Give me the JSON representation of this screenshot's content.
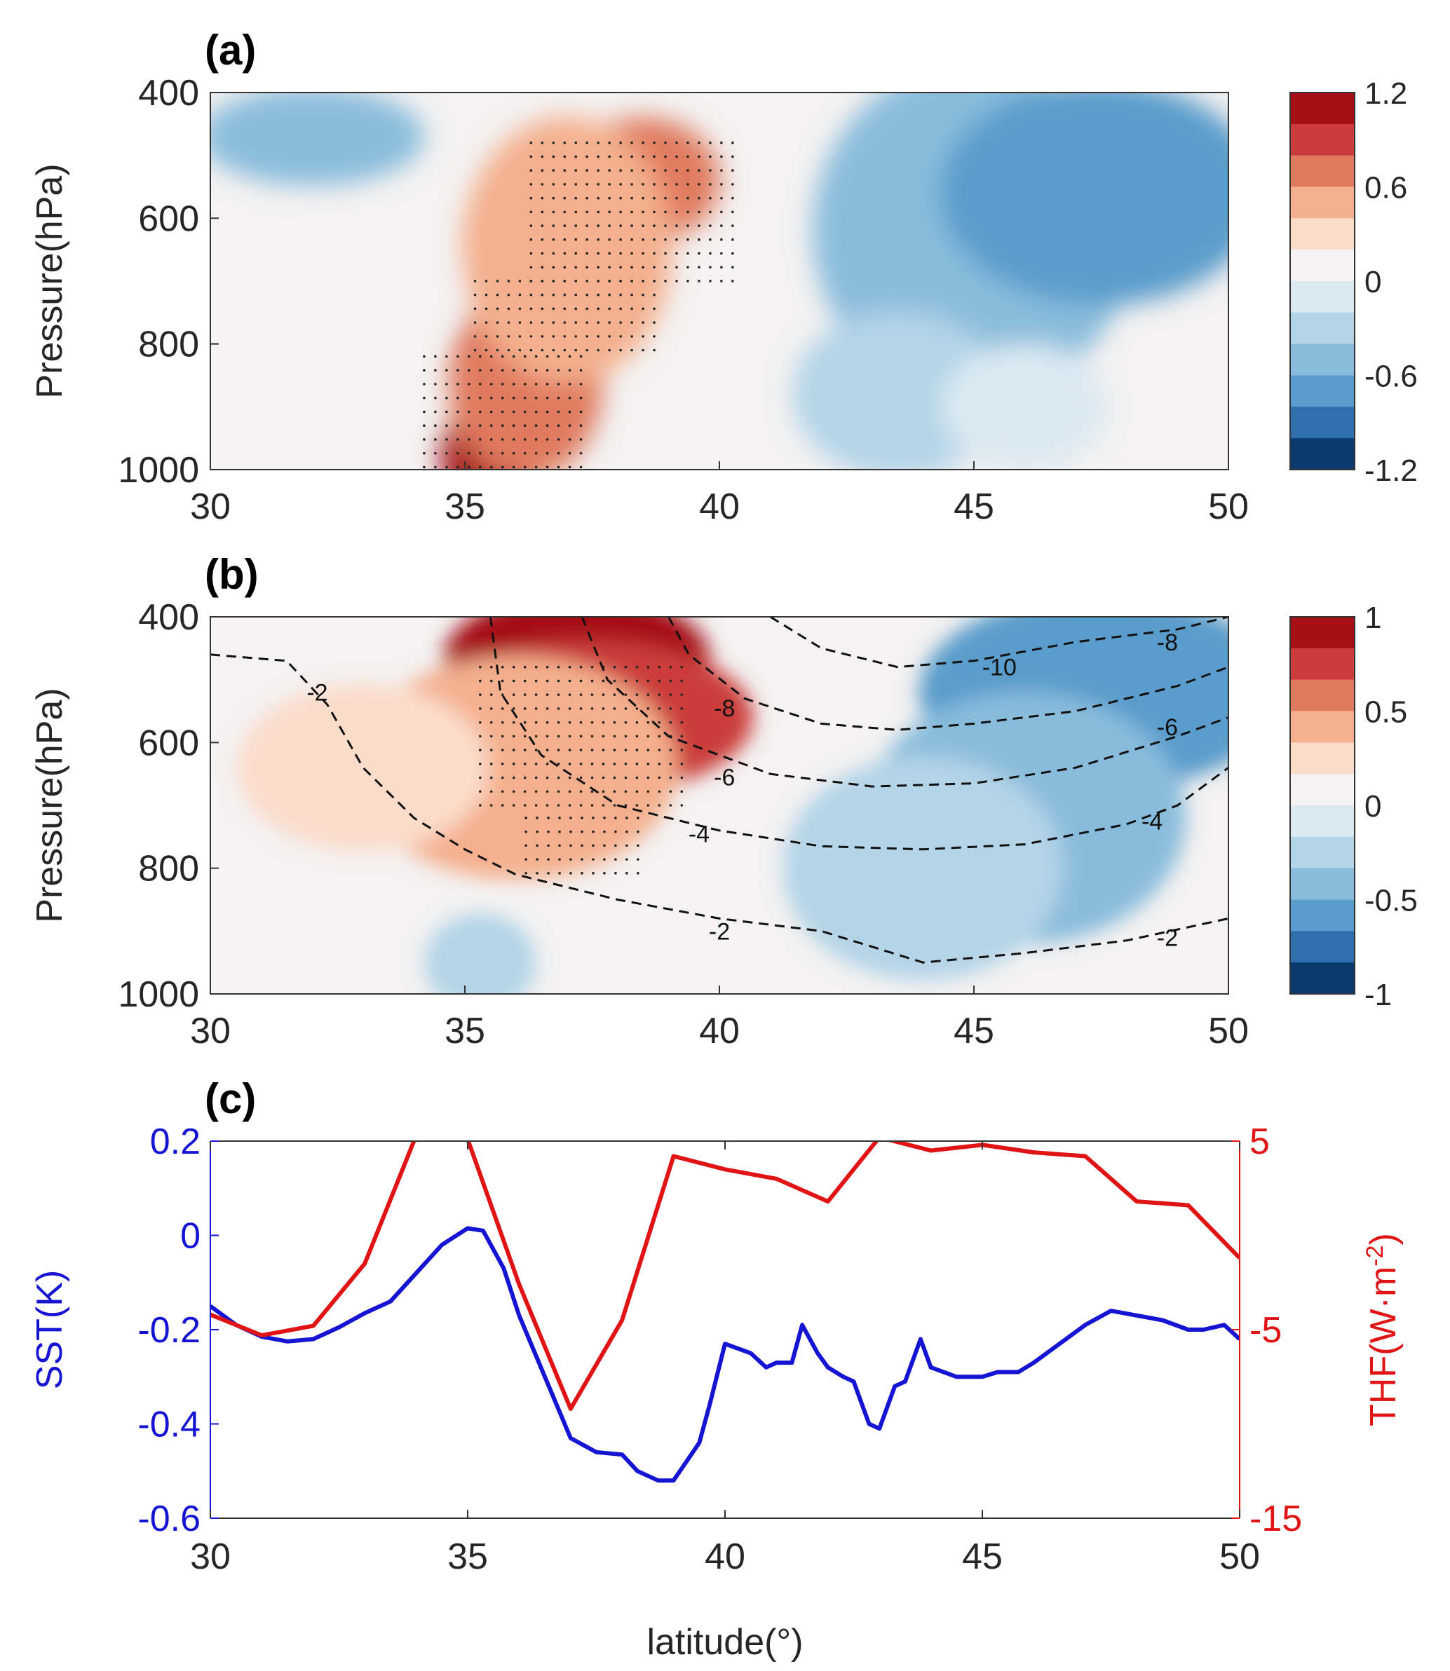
{
  "figure": {
    "panel_labels": [
      "(a)",
      "(b)",
      "(c)"
    ]
  },
  "chart_data": [
    {
      "panel": "(a)",
      "type": "heatmap",
      "ylabel": "Pressure(hPa)",
      "xlabel": "",
      "xlim": [
        30,
        50
      ],
      "ylim": [
        1000,
        400
      ],
      "xticks": [
        30,
        35,
        40,
        45,
        50
      ],
      "yticks": [
        400,
        600,
        800,
        1000
      ],
      "colorbar": {
        "min": -1.2,
        "max": 1.2,
        "ticks": [
          "1.2",
          "0.6",
          "0",
          "-0.6",
          "-1.2"
        ]
      },
      "annotations": [
        "stippling marks statistically significant region (approx. 34–40°N)"
      ],
      "anomaly_regions": [
        {
          "center": [
            35.5,
            980
          ],
          "value": 1.2
        },
        {
          "center": [
            36.2,
            860
          ],
          "value": 0.8
        },
        {
          "center": [
            38.5,
            540
          ],
          "value": 0.8
        },
        {
          "center": [
            37.0,
            650
          ],
          "value": 0.5
        },
        {
          "center": [
            33.0,
            720
          ],
          "value": 0.2
        },
        {
          "center": [
            45.0,
            620
          ],
          "value": -0.6
        },
        {
          "center": [
            47.5,
            560
          ],
          "value": -0.7
        },
        {
          "center": [
            32.0,
            470
          ],
          "value": -0.5
        },
        {
          "center": [
            43.5,
            880
          ],
          "value": -0.35
        },
        {
          "center": [
            46.0,
            900
          ],
          "value": 0.0
        }
      ]
    },
    {
      "panel": "(b)",
      "type": "heatmap",
      "ylabel": "Pressure(hPa)",
      "xlabel": "",
      "xlim": [
        30,
        50
      ],
      "ylim": [
        1000,
        400
      ],
      "xticks": [
        30,
        35,
        40,
        45,
        50
      ],
      "yticks": [
        400,
        600,
        800,
        1000
      ],
      "colorbar": {
        "min": -1,
        "max": 1,
        "ticks": [
          "1",
          "0.5",
          "0",
          "-0.5",
          "-1"
        ]
      },
      "anomaly_regions": [
        {
          "center": [
            37.2,
            470
          ],
          "value": 1.0
        },
        {
          "center": [
            37.5,
            560
          ],
          "value": 0.75
        },
        {
          "center": [
            36.0,
            640
          ],
          "value": 0.45
        },
        {
          "center": [
            33.0,
            640
          ],
          "value": 0.35
        },
        {
          "center": [
            47.5,
            520
          ],
          "value": -0.6
        },
        {
          "center": [
            46.0,
            720
          ],
          "value": -0.45
        },
        {
          "center": [
            44.0,
            800
          ],
          "value": -0.2
        },
        {
          "center": [
            35.3,
            950
          ],
          "value": -0.25
        }
      ],
      "contours": [
        {
          "label": "-2",
          "points": [
            [
              30,
              460
            ],
            [
              31.5,
              470
            ],
            [
              32.3,
              540
            ],
            [
              33,
              640
            ],
            [
              34,
              720
            ],
            [
              35,
              770
            ],
            [
              36,
              810
            ],
            [
              38,
              850
            ],
            [
              40,
              880
            ],
            [
              42,
              900
            ],
            [
              44,
              950
            ],
            [
              46,
              935
            ],
            [
              48,
              915
            ],
            [
              50,
              880
            ]
          ]
        },
        {
          "label": "-4",
          "points": [
            [
              35.5,
              400
            ],
            [
              35.7,
              520
            ],
            [
              36.5,
              620
            ],
            [
              38,
              700
            ],
            [
              40,
              740
            ],
            [
              42,
              765
            ],
            [
              44,
              770
            ],
            [
              46,
              762
            ],
            [
              48,
              730
            ],
            [
              49,
              700
            ],
            [
              50,
              640
            ]
          ]
        },
        {
          "label": "-6",
          "points": [
            [
              37.3,
              400
            ],
            [
              37.8,
              500
            ],
            [
              39,
              590
            ],
            [
              41,
              650
            ],
            [
              43,
              670
            ],
            [
              45,
              665
            ],
            [
              47,
              640
            ],
            [
              49,
              590
            ],
            [
              50,
              560
            ]
          ]
        },
        {
          "label": "-8",
          "points": [
            [
              39,
              400
            ],
            [
              39.4,
              460
            ],
            [
              40.5,
              530
            ],
            [
              42,
              570
            ],
            [
              43.5,
              580
            ],
            [
              45,
              570
            ],
            [
              47,
              550
            ],
            [
              49,
              510
            ],
            [
              50,
              480
            ]
          ]
        },
        {
          "label": "-10",
          "points": [
            [
              41,
              400
            ],
            [
              42,
              450
            ],
            [
              43.5,
              480
            ],
            [
              45,
              470
            ],
            [
              47,
              440
            ],
            [
              49,
              420
            ],
            [
              50,
              400
            ]
          ]
        }
      ],
      "contour_labels": [
        {
          "text": "-2",
          "at": [
            32.1,
            520
          ]
        },
        {
          "text": "-2",
          "at": [
            40,
            900
          ]
        },
        {
          "text": "-2",
          "at": [
            48.8,
            910
          ]
        },
        {
          "text": "-4",
          "at": [
            39.6,
            745
          ]
        },
        {
          "text": "-4",
          "at": [
            48.5,
            725
          ]
        },
        {
          "text": "-6",
          "at": [
            40.1,
            655
          ]
        },
        {
          "text": "-6",
          "at": [
            48.8,
            575
          ]
        },
        {
          "text": "-8",
          "at": [
            40.1,
            545
          ]
        },
        {
          "text": "-8",
          "at": [
            48.8,
            440
          ]
        },
        {
          "text": "-10",
          "at": [
            45.5,
            480
          ]
        }
      ]
    },
    {
      "panel": "(c)",
      "type": "line",
      "xlabel": "latitude(°)",
      "ylabel": "SST(K)",
      "ylabel_right": "THF(W·m-2)",
      "xlim": [
        30,
        50
      ],
      "ylim": [
        -0.6,
        0.2
      ],
      "ylim_right": [
        -15,
        5
      ],
      "xticks": [
        30,
        35,
        40,
        45,
        50
      ],
      "yticks": [
        "0.2",
        "0",
        "-0.2",
        "-0.4",
        "-0.6"
      ],
      "yticks_right": [
        "5",
        "-5",
        "-15"
      ],
      "colors": {
        "sst": "#1414d2",
        "thf": "#e01414"
      },
      "series": [
        {
          "name": "SST",
          "axis": "left",
          "x": [
            30,
            30.5,
            31,
            31.5,
            32,
            32.5,
            33,
            33.5,
            34,
            34.5,
            35,
            35.3,
            35.7,
            36,
            36.5,
            37,
            37.5,
            38,
            38.3,
            38.7,
            39,
            39.5,
            39.7,
            40,
            40.5,
            40.8,
            41,
            41.3,
            41.5,
            41.8,
            42,
            42.3,
            42.5,
            42.8,
            43,
            43.3,
            43.5,
            43.8,
            44,
            44.5,
            45,
            45.3,
            45.7,
            46,
            46.5,
            47,
            47.5,
            48,
            48.5,
            49,
            49.3,
            49.7,
            50
          ],
          "values": [
            -0.15,
            -0.19,
            -0.215,
            -0.225,
            -0.22,
            -0.195,
            -0.165,
            -0.14,
            -0.08,
            -0.02,
            0.015,
            0.01,
            -0.07,
            -0.17,
            -0.3,
            -0.43,
            -0.46,
            -0.465,
            -0.5,
            -0.52,
            -0.52,
            -0.44,
            -0.36,
            -0.23,
            -0.25,
            -0.28,
            -0.27,
            -0.27,
            -0.19,
            -0.25,
            -0.28,
            -0.3,
            -0.31,
            -0.4,
            -0.41,
            -0.32,
            -0.31,
            -0.22,
            -0.28,
            -0.3,
            -0.3,
            -0.29,
            -0.29,
            -0.27,
            -0.23,
            -0.19,
            -0.16,
            -0.17,
            -0.18,
            -0.2,
            -0.2,
            -0.19,
            -0.22
          ]
        },
        {
          "name": "THF",
          "axis": "right",
          "x": [
            30,
            31,
            32,
            33,
            34,
            35,
            36,
            37,
            38,
            39,
            40,
            41,
            42,
            43,
            44,
            45,
            46,
            47,
            48,
            49,
            50
          ],
          "values": [
            -4.2,
            -5.3,
            -4.8,
            -1.5,
            5.3,
            5.1,
            -2.6,
            -9.2,
            -4.5,
            4.2,
            3.5,
            3.0,
            1.8,
            5.2,
            4.5,
            4.8,
            4.4,
            4.2,
            1.8,
            1.6,
            -1.2
          ]
        }
      ]
    }
  ]
}
